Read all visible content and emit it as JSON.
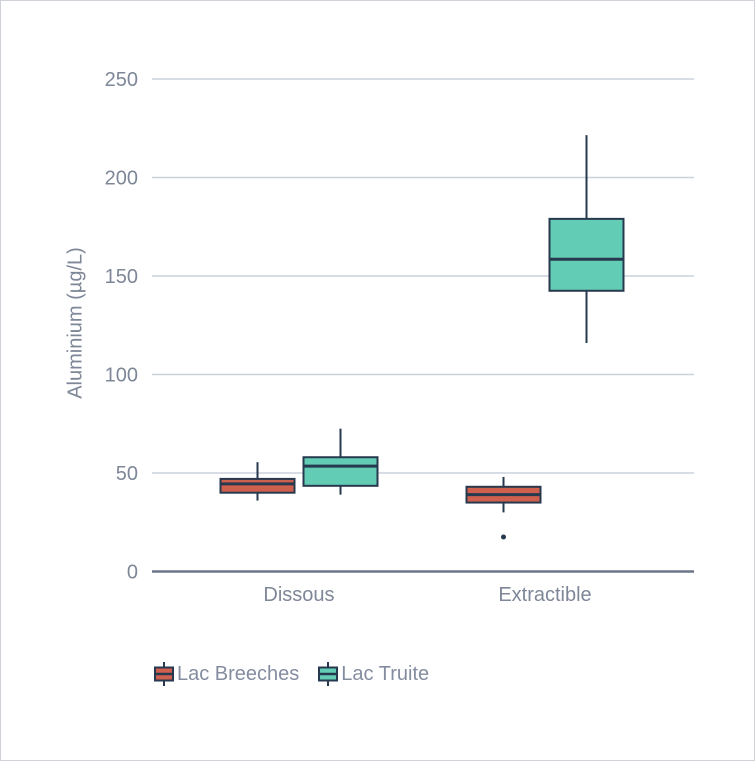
{
  "chart_data": {
    "type": "boxplot",
    "title": "",
    "xlabel": "",
    "ylabel": "Aluminium (µg/L)",
    "categories": [
      "Dissous",
      "Extractible"
    ],
    "yticks": [
      0,
      50,
      100,
      150,
      200,
      250
    ],
    "ylim": [
      0,
      270
    ],
    "grid": "horizontal",
    "legend_position": "bottom-left",
    "series": [
      {
        "name": "Lac Breeches",
        "fill_color": "#d0604e",
        "stroke_color": "#27394e",
        "boxes": [
          {
            "category": "Dissous",
            "min": 36,
            "q1": 40,
            "median": 44.5,
            "q3": 47,
            "max": 55.5,
            "outliers": []
          },
          {
            "category": "Extractible",
            "min": 30,
            "q1": 35,
            "median": 39,
            "q3": 43,
            "max": 48,
            "outliers": [
              17.5
            ]
          }
        ]
      },
      {
        "name": "Lac Truite",
        "fill_color": "#63ccb4",
        "stroke_color": "#27394e",
        "boxes": [
          {
            "category": "Dissous",
            "min": 39,
            "q1": 43.5,
            "median": 53.5,
            "q3": 58,
            "max": 72.5,
            "outliers": []
          },
          {
            "category": "Extractible",
            "min": 116,
            "q1": 142.5,
            "median": 158.5,
            "q3": 179,
            "max": 221.5,
            "outliers": []
          }
        ]
      }
    ],
    "colors": {
      "gridline": "#ccd1db",
      "axis_line": "#6b7687",
      "tick_text": "#7e8798",
      "category_text": "#7e8798",
      "outlier": "#27394e",
      "background": "#ffffff",
      "page_border": "#cfd2d8"
    }
  }
}
